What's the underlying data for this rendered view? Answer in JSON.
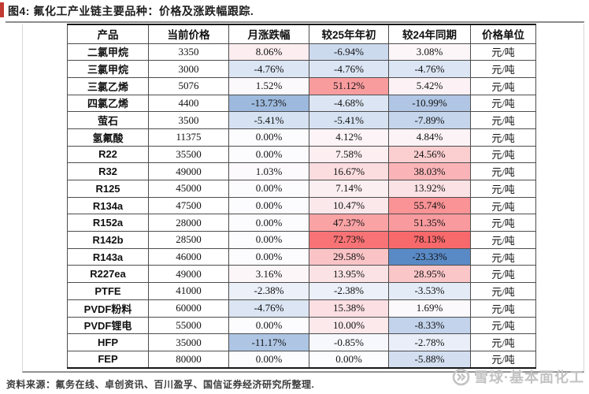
{
  "figure": {
    "caption": "图4: 氟化工产业链主要品种：价格及涨跌幅跟踪.",
    "source": "资料来源：氟务在线、卓创资讯、百川盈孚、国信证券经济研究所整理.",
    "watermark": "雪球·基本面化工",
    "watermark_icon": "snowball-logo",
    "accent_color": "#c23a32"
  },
  "chart_data": {
    "type": "table",
    "title": "氟化工产业链主要品种：价格及涨跌幅跟踪",
    "columns": [
      "产品",
      "当前价格",
      "月涨跌幅",
      "较25年年初",
      "较24年同期",
      "价格单位"
    ],
    "rows": [
      [
        "二氯甲烷",
        3350,
        8.06,
        -6.94,
        3.08,
        "元/吨"
      ],
      [
        "三氯甲烷",
        3000,
        -4.76,
        -4.76,
        -4.76,
        "元/吨"
      ],
      [
        "三氯乙烯",
        5076,
        1.52,
        51.12,
        5.42,
        "元/吨"
      ],
      [
        "四氯乙烯",
        4400,
        -13.73,
        -4.68,
        -10.99,
        "元/吨"
      ],
      [
        "萤石",
        3500,
        -5.41,
        -5.41,
        -7.89,
        "元/吨"
      ],
      [
        "氢氟酸",
        11375,
        0.0,
        4.12,
        4.84,
        "元/吨"
      ],
      [
        "R22",
        35500,
        0.0,
        7.58,
        24.56,
        "元/吨"
      ],
      [
        "R32",
        49000,
        1.03,
        16.67,
        38.03,
        "元/吨"
      ],
      [
        "R125",
        45000,
        0.0,
        7.14,
        13.92,
        "元/吨"
      ],
      [
        "R134a",
        47500,
        0.0,
        10.47,
        55.74,
        "元/吨"
      ],
      [
        "R152a",
        28000,
        0.0,
        47.37,
        51.35,
        "元/吨"
      ],
      [
        "R142b",
        28500,
        0.0,
        72.73,
        78.13,
        "元/吨"
      ],
      [
        "R143a",
        46000,
        0.0,
        29.58,
        -23.33,
        "元/吨"
      ],
      [
        "R227ea",
        49000,
        3.16,
        13.95,
        28.95,
        "元/吨"
      ],
      [
        "PTFE",
        41000,
        -2.38,
        -2.38,
        -3.53,
        "元/吨"
      ],
      [
        "PVDF粉料",
        60000,
        -4.76,
        15.38,
        1.69,
        "元/吨"
      ],
      [
        "PVDF锂电",
        55000,
        0.0,
        10.0,
        -8.33,
        "元/吨"
      ],
      [
        "HFP",
        35000,
        -11.17,
        -0.85,
        -2.78,
        "元/吨"
      ],
      [
        "FEP",
        80000,
        0.0,
        0.0,
        -5.88,
        "元/吨"
      ]
    ],
    "percent_columns": [
      2,
      3,
      4
    ],
    "color_scale": {
      "min": -23.33,
      "mid": 0,
      "max": 78.13,
      "min_color": "#5A8AC6",
      "mid_color": "#FCFCFF",
      "max_color": "#F8696B"
    }
  }
}
